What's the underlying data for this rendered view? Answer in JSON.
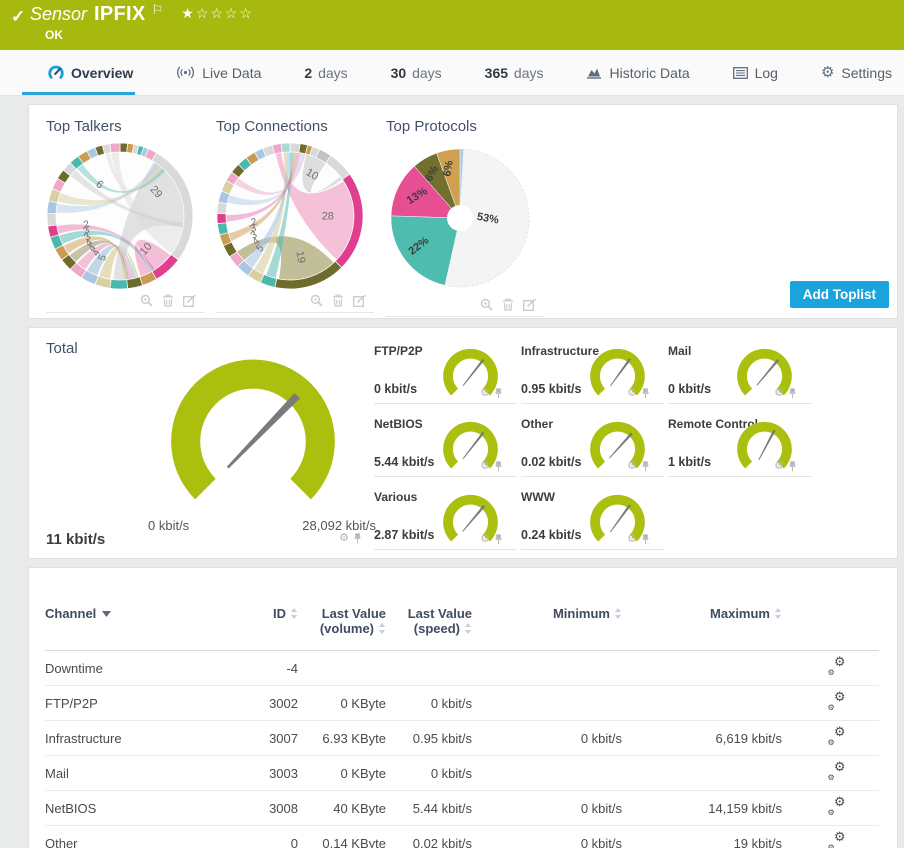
{
  "header": {
    "type_label": "Sensor",
    "sensor_name": "IPFIX",
    "status": "OK",
    "rating": {
      "filled": 1,
      "total": 5
    },
    "colors": {
      "bar_bg": "#a7b80f",
      "accent_blue": "#1ba3dd",
      "gauge_green": "#abbf0e"
    }
  },
  "tabs": [
    {
      "label": "Overview",
      "icon": "gauge-icon",
      "active": true
    },
    {
      "label": "Live Data",
      "icon": "broadcast-icon"
    },
    {
      "num": "2",
      "label": "days"
    },
    {
      "num": "30",
      "label": "days"
    },
    {
      "num": "365",
      "label": "days"
    },
    {
      "label": "Historic Data",
      "icon": "chart-icon"
    },
    {
      "label": "Log",
      "icon": "log-icon"
    },
    {
      "label": "Settings",
      "icon": "gear-icon"
    }
  ],
  "toplists": {
    "add_button_label": "Add Toplist",
    "panels": [
      {
        "title": "Top Talkers"
      },
      {
        "title": "Top Connections"
      },
      {
        "title": "Top Protocols"
      }
    ],
    "panel_icons": [
      "inspect-icon",
      "delete-icon",
      "edit-icon"
    ]
  },
  "gauges": {
    "total": {
      "label": "Total",
      "value": "11 kbit/s",
      "scale_min": "0 kbit/s",
      "scale_max": "28,092 kbit/s",
      "needle_deg": 44
    },
    "channels": [
      {
        "label": "FTP/P2P",
        "value": "0 kbit/s",
        "needle_deg": 38
      },
      {
        "label": "Infrastructure",
        "value": "0.95 kbit/s",
        "needle_deg": 36
      },
      {
        "label": "Mail",
        "value": "0 kbit/s",
        "needle_deg": 40
      },
      {
        "label": "NetBIOS",
        "value": "5.44 kbit/s",
        "needle_deg": 38
      },
      {
        "label": "Other",
        "value": "0.02 kbit/s",
        "needle_deg": 42
      },
      {
        "label": "Remote Control",
        "value": "1 kbit/s",
        "needle_deg": 28
      },
      {
        "label": "Various",
        "value": "2.87 kbit/s",
        "needle_deg": 40
      },
      {
        "label": "WWW",
        "value": "0.24 kbit/s",
        "needle_deg": 36
      }
    ]
  },
  "table": {
    "headers": [
      {
        "label": "Channel",
        "sort": "desc",
        "align": "left"
      },
      {
        "label": "ID",
        "sort": "both"
      },
      {
        "label": "Last Value (volume)",
        "sort": "both"
      },
      {
        "label": "Last Value (speed)",
        "sort": "both"
      },
      {
        "label": "Minimum",
        "sort": "both"
      },
      {
        "label": "Maximum",
        "sort": "both"
      },
      {
        "label": "",
        "sort": "none"
      }
    ],
    "rows": [
      [
        "Downtime",
        "-4",
        "",
        "",
        "",
        ""
      ],
      [
        "FTP/P2P",
        "3002",
        "0 KByte",
        "0 kbit/s",
        "",
        ""
      ],
      [
        "Infrastructure",
        "3007",
        "6.93 KByte",
        "0.95 kbit/s",
        "0 kbit/s",
        "6,619 kbit/s"
      ],
      [
        "Mail",
        "3003",
        "0 KByte",
        "0 kbit/s",
        "",
        ""
      ],
      [
        "NetBIOS",
        "3008",
        "40 KByte",
        "5.44 kbit/s",
        "0 kbit/s",
        "14,159 kbit/s"
      ],
      [
        "Other",
        "0",
        "0.14 KByte",
        "0.02 kbit/s",
        "0 kbit/s",
        "19 kbit/s"
      ]
    ]
  },
  "chart_data": [
    {
      "id": "top-talkers",
      "type": "chord",
      "title": "Top Talkers",
      "ribbon_values": [
        29,
        10,
        6,
        5,
        4,
        4,
        4,
        3,
        3,
        2
      ],
      "segments": [
        [
          6,
          "#6f6b2d"
        ],
        [
          5,
          "#c99c52"
        ],
        [
          4,
          "#d9d9d9"
        ],
        [
          4,
          "#4bb8ad"
        ],
        [
          4,
          "#a9c6e2"
        ],
        [
          7,
          "#f0a8c8"
        ],
        [
          97,
          "#d9d9d9"
        ],
        [
          23,
          "#e03f90"
        ],
        [
          12,
          "#c99c52"
        ],
        [
          12,
          "#6f6b2d"
        ],
        [
          14,
          "#4bb8ad"
        ],
        [
          12,
          "#d8d0a0"
        ],
        [
          12,
          "#a9c6e2"
        ],
        [
          11,
          "#f0a8c8"
        ],
        [
          10,
          "#6f6b2d"
        ],
        [
          10,
          "#c99c52"
        ],
        [
          10,
          "#4bb8ad"
        ],
        [
          9,
          "#e03f90"
        ],
        [
          10,
          "#d9d9d9"
        ],
        [
          10,
          "#a9c6e2"
        ],
        [
          10,
          "#d8d0a0"
        ],
        [
          9,
          "#f0a8c8"
        ],
        [
          8,
          "#6f6b2d"
        ],
        [
          8,
          "#d9d9d9"
        ],
        [
          8,
          "#4bb8ad"
        ],
        [
          8,
          "#c99c52"
        ],
        [
          7,
          "#a9c6e2"
        ],
        [
          6,
          "#6f6b2d"
        ],
        [
          6,
          "#d9d9d9"
        ],
        [
          8,
          "#f0a8c8"
        ]
      ],
      "ribbons": [
        {
          "s": [
            32,
            100
          ],
          "t": [
            176,
            186
          ],
          "c": "#cfcfcf",
          "o": 0.6
        },
        {
          "s": [
            100,
            126
          ],
          "t": [
            352,
            359
          ],
          "c": "#dcdcdc",
          "o": 0.5
        },
        {
          "s": [
            128,
            149
          ],
          "t": [
            151,
            161
          ],
          "c": "#f2b3d1",
          "o": 0.85
        },
        {
          "s": [
            309,
            316
          ],
          "t": [
            96,
            100
          ],
          "c": "#cccccc",
          "o": 0.5
        },
        {
          "s": [
            189,
            199
          ],
          "t": [
            163,
            166
          ],
          "c": "#d8d0a0",
          "o": 0.7
        },
        {
          "s": [
            201,
            211
          ],
          "t": [
            166,
            169
          ],
          "c": "#a9c6e2",
          "o": 0.7
        },
        {
          "s": [
            213,
            222
          ],
          "t": [
            169,
            172
          ],
          "c": "#f0a8c8",
          "o": 0.7
        },
        {
          "s": [
            224,
            232
          ],
          "t": [
            172,
            174
          ],
          "c": "#6f6b2d",
          "o": 0.4
        },
        {
          "s": [
            234,
            242
          ],
          "t": [
            174,
            176
          ],
          "c": "#c99c52",
          "o": 0.5
        },
        {
          "s": [
            244,
            252
          ],
          "t": [
            149,
            151
          ],
          "c": "#4bb8ad",
          "o": 0.5
        },
        {
          "s": [
            254,
            261
          ],
          "t": [
            147,
            149
          ],
          "c": "#e03f90",
          "o": 0.35
        },
        {
          "s": [
            273,
            281
          ],
          "t": [
            34,
            38
          ],
          "c": "#a9c6e2",
          "o": 0.45
        },
        {
          "s": [
            283,
            291
          ],
          "t": [
            38,
            42
          ],
          "c": "#d8d0a0",
          "o": 0.5
        },
        {
          "s": [
            318,
            324
          ],
          "t": [
            42,
            45
          ],
          "c": "#4bb8ad",
          "o": 0.4
        },
        {
          "s": [
            347,
            351
          ],
          "t": [
            45,
            48
          ],
          "c": "#d9d9d9",
          "o": 0.5
        }
      ],
      "labels": [
        {
          "a": 57,
          "r": 0.55,
          "t": "29",
          "rot": 48,
          "fs": 11
        },
        {
          "a": 141,
          "r": 0.62,
          "t": "10",
          "rot": -50,
          "fs": 11
        },
        {
          "a": 322,
          "r": 0.5,
          "t": "6",
          "rot": 38,
          "fs": 11
        },
        {
          "a": 251,
          "r": 0.47,
          "t": "2",
          "rot": -19,
          "fs": 10
        },
        {
          "a": 242,
          "r": 0.5,
          "t": "3",
          "rot": -28,
          "fs": 10
        },
        {
          "a": 233,
          "r": 0.53,
          "t": "3",
          "rot": -37,
          "fs": 10
        },
        {
          "a": 225,
          "r": 0.56,
          "t": "4",
          "rot": -45,
          "fs": 10
        },
        {
          "a": 217,
          "r": 0.58,
          "t": "4",
          "rot": -53,
          "fs": 10
        },
        {
          "a": 209,
          "r": 0.6,
          "t": "4",
          "rot": -61,
          "fs": 10
        },
        {
          "a": 199,
          "r": 0.62,
          "t": "5",
          "rot": -71,
          "fs": 10
        }
      ]
    },
    {
      "id": "top-connections",
      "type": "chord",
      "title": "Top Connections",
      "ribbon_values": [
        28,
        19,
        10,
        5,
        4,
        3,
        3,
        2
      ],
      "segments": [
        [
          8,
          "#d9d9d9"
        ],
        [
          6,
          "#6f6b2d"
        ],
        [
          4,
          "#c99c52"
        ],
        [
          6,
          "#d9d9d9"
        ],
        [
          10,
          "#c2c2c2"
        ],
        [
          21,
          "#d9d9d9"
        ],
        [
          80,
          "#e03f90"
        ],
        [
          57,
          "#6f6b2d"
        ],
        [
          12,
          "#4bb8ad"
        ],
        [
          11,
          "#d8d0a0"
        ],
        [
          11,
          "#a9c6e2"
        ],
        [
          10,
          "#f0a8c8"
        ],
        [
          10,
          "#6f6b2d"
        ],
        [
          9,
          "#c99c52"
        ],
        [
          9,
          "#4bb8ad"
        ],
        [
          8,
          "#e03f90"
        ],
        [
          9,
          "#d9d9d9"
        ],
        [
          9,
          "#a9c6e2"
        ],
        [
          9,
          "#d8d0a0"
        ],
        [
          8,
          "#f0a8c8"
        ],
        [
          8,
          "#6f6b2d"
        ],
        [
          8,
          "#4bb8ad"
        ],
        [
          8,
          "#c99c52"
        ],
        [
          7,
          "#a9c6e2"
        ],
        [
          8,
          "#d9d9d9"
        ],
        [
          7,
          "#f0a8c8"
        ],
        [
          7,
          "#a8dbd4"
        ]
      ],
      "ribbons": [
        {
          "s": [
            57,
            133
          ],
          "t": [
            347,
            352
          ],
          "c": "#f3b6d2",
          "o": 0.85
        },
        {
          "s": [
            137,
            190
          ],
          "t": [
            226,
            236
          ],
          "c": "#8f8a45",
          "o": 0.55
        },
        {
          "s": [
            15,
            34
          ],
          "t": [
            52,
            55
          ],
          "c": "#cfcfcf",
          "o": 0.7
        },
        {
          "s": [
            205,
            214
          ],
          "t": [
            354,
            357
          ],
          "c": "#d8d0a0",
          "o": 0.6
        },
        {
          "s": [
            216,
            225
          ],
          "t": [
            357,
            360
          ],
          "c": "#a9c6e2",
          "o": 0.6
        },
        {
          "s": [
            193,
            202
          ],
          "t": [
            0,
            3
          ],
          "c": "#4bb8ad",
          "o": 0.5
        },
        {
          "s": [
            247,
            254
          ],
          "t": [
            3,
            6
          ],
          "c": "#c99c52",
          "o": 0.5
        },
        {
          "s": [
            265,
            271
          ],
          "t": [
            6,
            9
          ],
          "c": "#e03f90",
          "o": 0.35
        },
        {
          "s": [
            282,
            289
          ],
          "t": [
            9,
            12
          ],
          "c": "#a9c6e2",
          "o": 0.45
        },
        {
          "s": [
            300,
            306
          ],
          "t": [
            12,
            14
          ],
          "c": "#f0a8c8",
          "o": 0.5
        }
      ],
      "labels": [
        {
          "a": 28,
          "r": 0.6,
          "t": "10",
          "rot": 30,
          "fs": 11
        },
        {
          "a": 95,
          "r": 0.52,
          "t": "28",
          "rot": 0,
          "fs": 11
        },
        {
          "a": 170,
          "r": 0.58,
          "t": "19",
          "rot": 80,
          "fs": 11
        },
        {
          "a": 256,
          "r": 0.5,
          "t": "2",
          "rot": -14,
          "fs": 10
        },
        {
          "a": 247,
          "r": 0.53,
          "t": "3",
          "rot": -23,
          "fs": 10
        },
        {
          "a": 238,
          "r": 0.56,
          "t": "3",
          "rot": -32,
          "fs": 10
        },
        {
          "a": 229,
          "r": 0.58,
          "t": "4",
          "rot": -41,
          "fs": 10
        },
        {
          "a": 219,
          "r": 0.6,
          "t": "5",
          "rot": -51,
          "fs": 10
        }
      ]
    },
    {
      "id": "top-protocols",
      "type": "pie",
      "title": "Top Protocols",
      "slices": [
        {
          "pct": 0.8,
          "color": "#9fcbe4",
          "label": ""
        },
        {
          "pct": 52.7,
          "color": "#f4f4f4",
          "label": "53%",
          "lr": 0.4,
          "rot": 10
        },
        {
          "pct": 22,
          "color": "#4fbcb0",
          "label": "22%",
          "lr": 0.72,
          "rot": -38
        },
        {
          "pct": 13,
          "color": "#e84f93",
          "label": "13%",
          "lr": 0.66,
          "rot": -32
        },
        {
          "pct": 6,
          "color": "#73702e",
          "label": "6%",
          "lr": 0.72,
          "rot": -62
        },
        {
          "pct": 5.5,
          "color": "#cfa04f",
          "label": "6%",
          "lr": 0.72,
          "rot": -80
        }
      ]
    },
    {
      "id": "total-gauge",
      "type": "gauge",
      "label": "Total",
      "value_kbit": 11,
      "range_kbit": [
        0,
        28092
      ],
      "unit": "kbit/s"
    },
    {
      "id": "channel-gauges",
      "type": "gauge",
      "unit": "kbit/s",
      "values_kbit": {
        "FTP/P2P": 0,
        "Infrastructure": 0.95,
        "Mail": 0,
        "NetBIOS": 5.44,
        "Other": 0.02,
        "Remote Control": 1,
        "Various": 2.87,
        "WWW": 0.24
      }
    }
  ]
}
